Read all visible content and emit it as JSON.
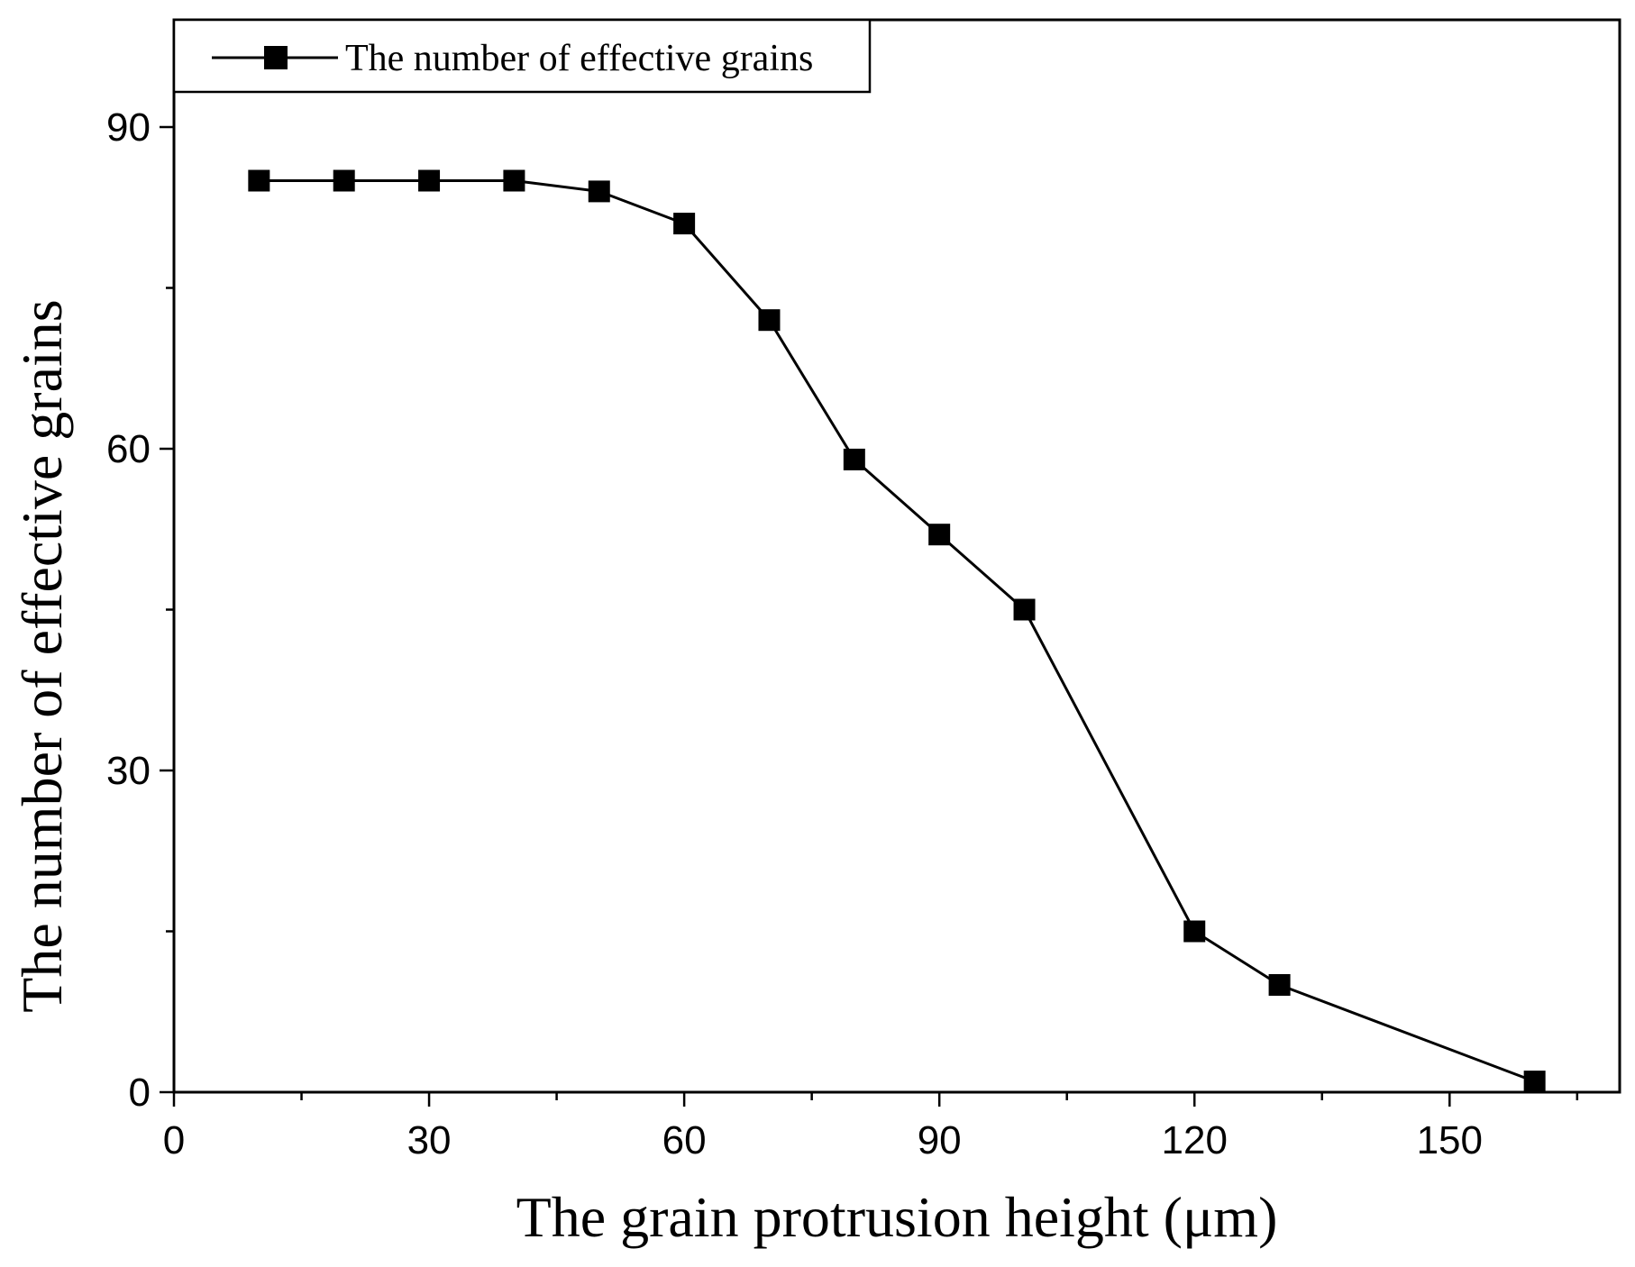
{
  "chart_data": {
    "type": "line",
    "title": "",
    "xlabel": "The grain protrusion height (μm)",
    "ylabel": "The number of effective grains",
    "xlim": [
      0,
      170
    ],
    "ylim": [
      0,
      100
    ],
    "x_ticks": [
      0,
      30,
      60,
      90,
      120,
      150
    ],
    "x_minor_ticks": [
      15,
      45,
      75,
      105,
      135,
      165
    ],
    "y_ticks": [
      0,
      30,
      60,
      90
    ],
    "y_minor_ticks": [
      15,
      45,
      75
    ],
    "legend_position": "top-left",
    "grid": false,
    "series": [
      {
        "name": "The number of effective grains",
        "color": "#000000",
        "marker": "square",
        "x": [
          10,
          20,
          30,
          40,
          50,
          60,
          70,
          80,
          90,
          100,
          120,
          130,
          160
        ],
        "values": [
          85,
          85,
          85,
          85,
          84,
          81,
          72,
          59,
          52,
          45,
          15,
          10,
          1
        ]
      }
    ]
  }
}
